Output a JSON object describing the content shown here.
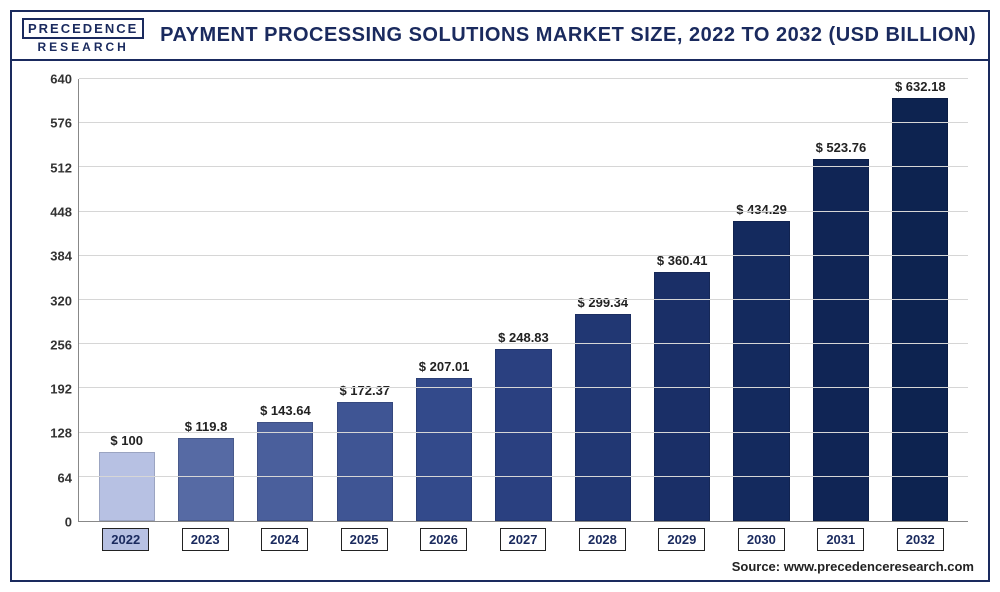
{
  "logo": {
    "top": "PRECEDENCE",
    "bottom": "RESEARCH"
  },
  "title": "PAYMENT PROCESSING SOLUTIONS MARKET SIZE, 2022 TO 2032 (USD BILLION)",
  "source": "Source: www.precedenceresearch.com",
  "chart": {
    "type": "bar",
    "ylim": [
      0,
      640
    ],
    "ytick_step": 64,
    "yticks": [
      0,
      64,
      128,
      192,
      256,
      320,
      384,
      448,
      512,
      576,
      640
    ],
    "categories": [
      "2022",
      "2023",
      "2024",
      "2025",
      "2026",
      "2027",
      "2028",
      "2029",
      "2030",
      "2031",
      "2032"
    ],
    "values": [
      100,
      119.8,
      143.64,
      172.37,
      207.01,
      248.83,
      299.34,
      360.41,
      434.29,
      523.76,
      632.18
    ],
    "value_labels": [
      "$ 100",
      "$ 119.8",
      "$ 143.64",
      "$ 172.37",
      "$ 207.01",
      "$ 248.83",
      "$ 299.34",
      "$ 360.41",
      "$ 434.29",
      "$ 523.76",
      "$ 632.18"
    ],
    "bar_colors": [
      "#b7c1e3",
      "#566aa4",
      "#4a5f9c",
      "#3f5594",
      "#334a8b",
      "#2a4080",
      "#213773",
      "#1a2f67",
      "#142a5e",
      "#102555",
      "#0d2350"
    ],
    "first_x_bg": "#b7c1e3",
    "grid_color": "#d6d6d6",
    "axis_color": "#888888",
    "title_color": "#1a2a5e",
    "title_fontsize": 20,
    "label_fontsize": 13,
    "bar_width_pct": 72
  }
}
